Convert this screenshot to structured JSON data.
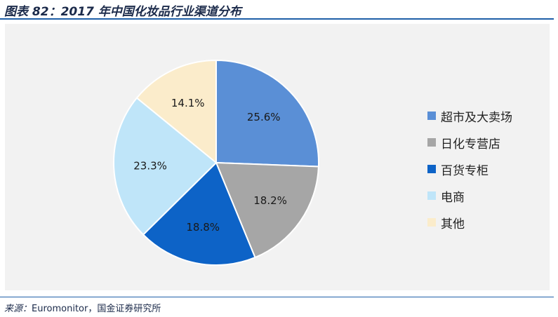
{
  "title": "图表 82：2017 年中国化妆品行业渠道分布",
  "source": {
    "label": "来源：",
    "text": "Euromonitor，国金证券研究所"
  },
  "chart_data": {
    "type": "pie",
    "title": "",
    "start_angle_deg": 0,
    "direction": "clockwise",
    "legend_position": "right",
    "slices": [
      {
        "label": "超市及大卖场",
        "value": 25.6,
        "display": "25.6%",
        "color": "#5a8fd6"
      },
      {
        "label": "日化专营店",
        "value": 18.2,
        "display": "18.2%",
        "color": "#a6a6a6"
      },
      {
        "label": "百货专柜",
        "value": 18.8,
        "display": "18.8%",
        "color": "#0d63c7"
      },
      {
        "label": "电商",
        "value": 23.3,
        "display": "23.3%",
        "color": "#bfe5f9"
      },
      {
        "label": "其他",
        "value": 14.1,
        "display": "14.1%",
        "color": "#fbeccb"
      }
    ]
  }
}
